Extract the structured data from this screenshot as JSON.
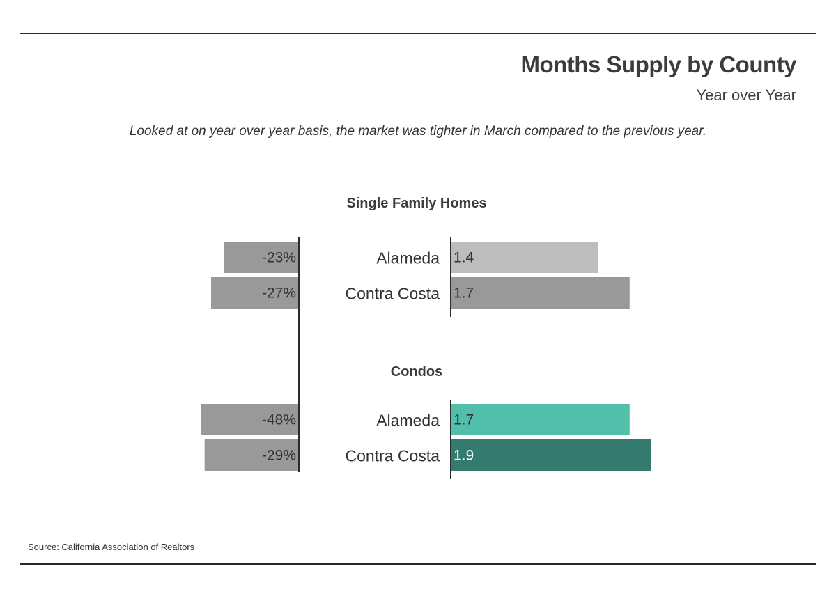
{
  "header": {
    "title": "Months Supply by County",
    "subtitle": "Year over Year",
    "description": "Looked at on year over year basis, the market was tighter in March compared to the previous year."
  },
  "footer": {
    "source": "Source:  California Association of Realtors"
  },
  "colors": {
    "pct_bar": "#999999",
    "sfh_alameda": "#bdbdbd",
    "sfh_contra_costa": "#999999",
    "condo_alameda": "#52bfaa",
    "condo_contra_costa": "#347b6f",
    "axis": "#2b2b2b"
  },
  "chart_data": {
    "type": "bar",
    "orientation": "horizontal",
    "value_axis_max": 1.9,
    "pct_axis_max": 30,
    "groups": [
      {
        "title": "Single Family Homes",
        "rows": [
          {
            "category": "Alameda",
            "months_supply": 1.4,
            "months_supply_label": "1.4",
            "yoy_change": -23,
            "yoy_label": "-23%",
            "color": "#bdbdbd",
            "label_color": "#333333"
          },
          {
            "category": "Contra Costa",
            "months_supply": 1.7,
            "months_supply_label": "1.7",
            "yoy_change": -27,
            "yoy_label": "-27%",
            "color": "#999999",
            "label_color": "#333333"
          }
        ]
      },
      {
        "title": "Condos",
        "rows": [
          {
            "category": "Alameda",
            "months_supply": 1.7,
            "months_supply_label": "1.7",
            "yoy_change": -48,
            "yoy_label": "-48%",
            "color": "#52bfaa",
            "label_color": "#333333"
          },
          {
            "category": "Contra Costa",
            "months_supply": 1.9,
            "months_supply_label": "1.9",
            "yoy_change": -29,
            "yoy_label": "-29%",
            "color": "#347b6f",
            "label_color": "#ffffff"
          }
        ]
      }
    ]
  }
}
